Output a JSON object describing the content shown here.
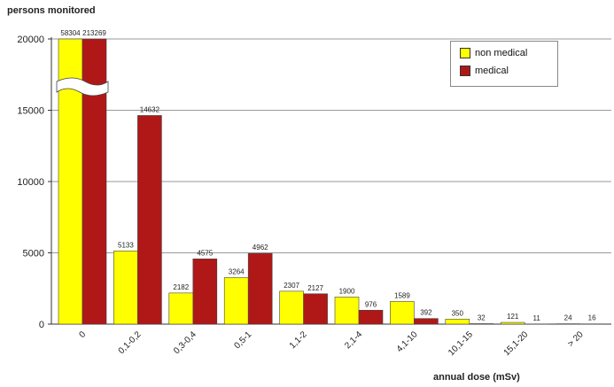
{
  "chart_data": {
    "type": "bar",
    "ylabel": "persons monitored",
    "xlabel": "annual dose (mSv)",
    "ylim": [
      0,
      20000
    ],
    "yticks": [
      0,
      5000,
      10000,
      15000,
      20000
    ],
    "grid": "horizontal",
    "legend_position": "top-right",
    "axis_break": "broken bars in first category",
    "categories": [
      "0",
      "0,1-0,2",
      "0,3-0,4",
      "0,5-1",
      "1,1-2",
      "2,1-4",
      "4,1-10",
      "10,1-15",
      "15,1-20",
      "> 20"
    ],
    "series": [
      {
        "name": "non medical",
        "color": "#ffff00",
        "values": [
          58304,
          5133,
          2182,
          3264,
          2307,
          1900,
          1589,
          350,
          121,
          24
        ]
      },
      {
        "name": "medical",
        "color": "#b01818",
        "values": [
          213269,
          14632,
          4575,
          4962,
          2127,
          976,
          392,
          32,
          11,
          16
        ]
      }
    ]
  }
}
